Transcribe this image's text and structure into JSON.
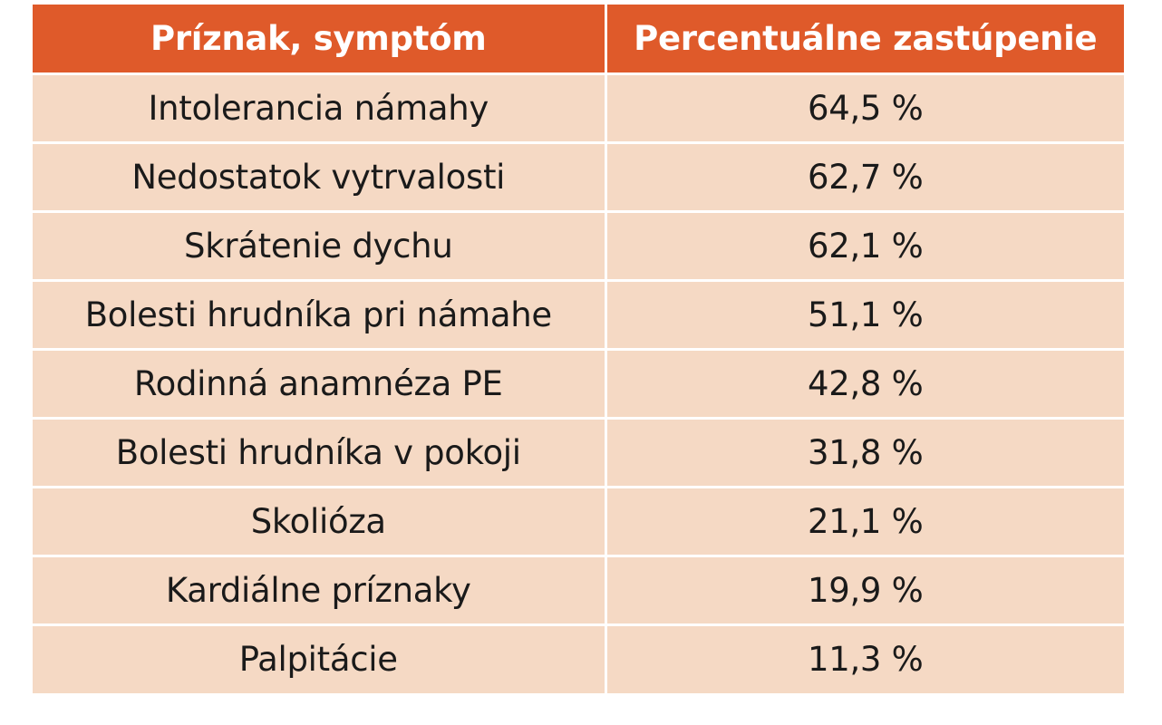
{
  "table": {
    "headers": [
      "Príznak, symptóm",
      "Percentuálne zastúpenie"
    ],
    "rows": [
      [
        "Intolerancia námahy",
        "64,5 %"
      ],
      [
        "Nedostatok vytrvalosti",
        "62,7 %"
      ],
      [
        "Skrátenie dychu",
        "62,1 %"
      ],
      [
        "Bolesti hrudníka pri námahe",
        "51,1 %"
      ],
      [
        "Rodinná anamnéza PE",
        "42,8 %"
      ],
      [
        "Bolesti hrudníka v pokoji",
        "31,8 %"
      ],
      [
        "Skolióza",
        "21,1 %"
      ],
      [
        "Kardiálne príznaky",
        "19,9 %"
      ],
      [
        "Palpitácie",
        "11,3 %"
      ]
    ]
  },
  "colors": {
    "header_bg": "#df5a2a",
    "header_text": "#ffffff",
    "row_bg": "#f5d9c4",
    "row_text": "#1a1a1a"
  }
}
